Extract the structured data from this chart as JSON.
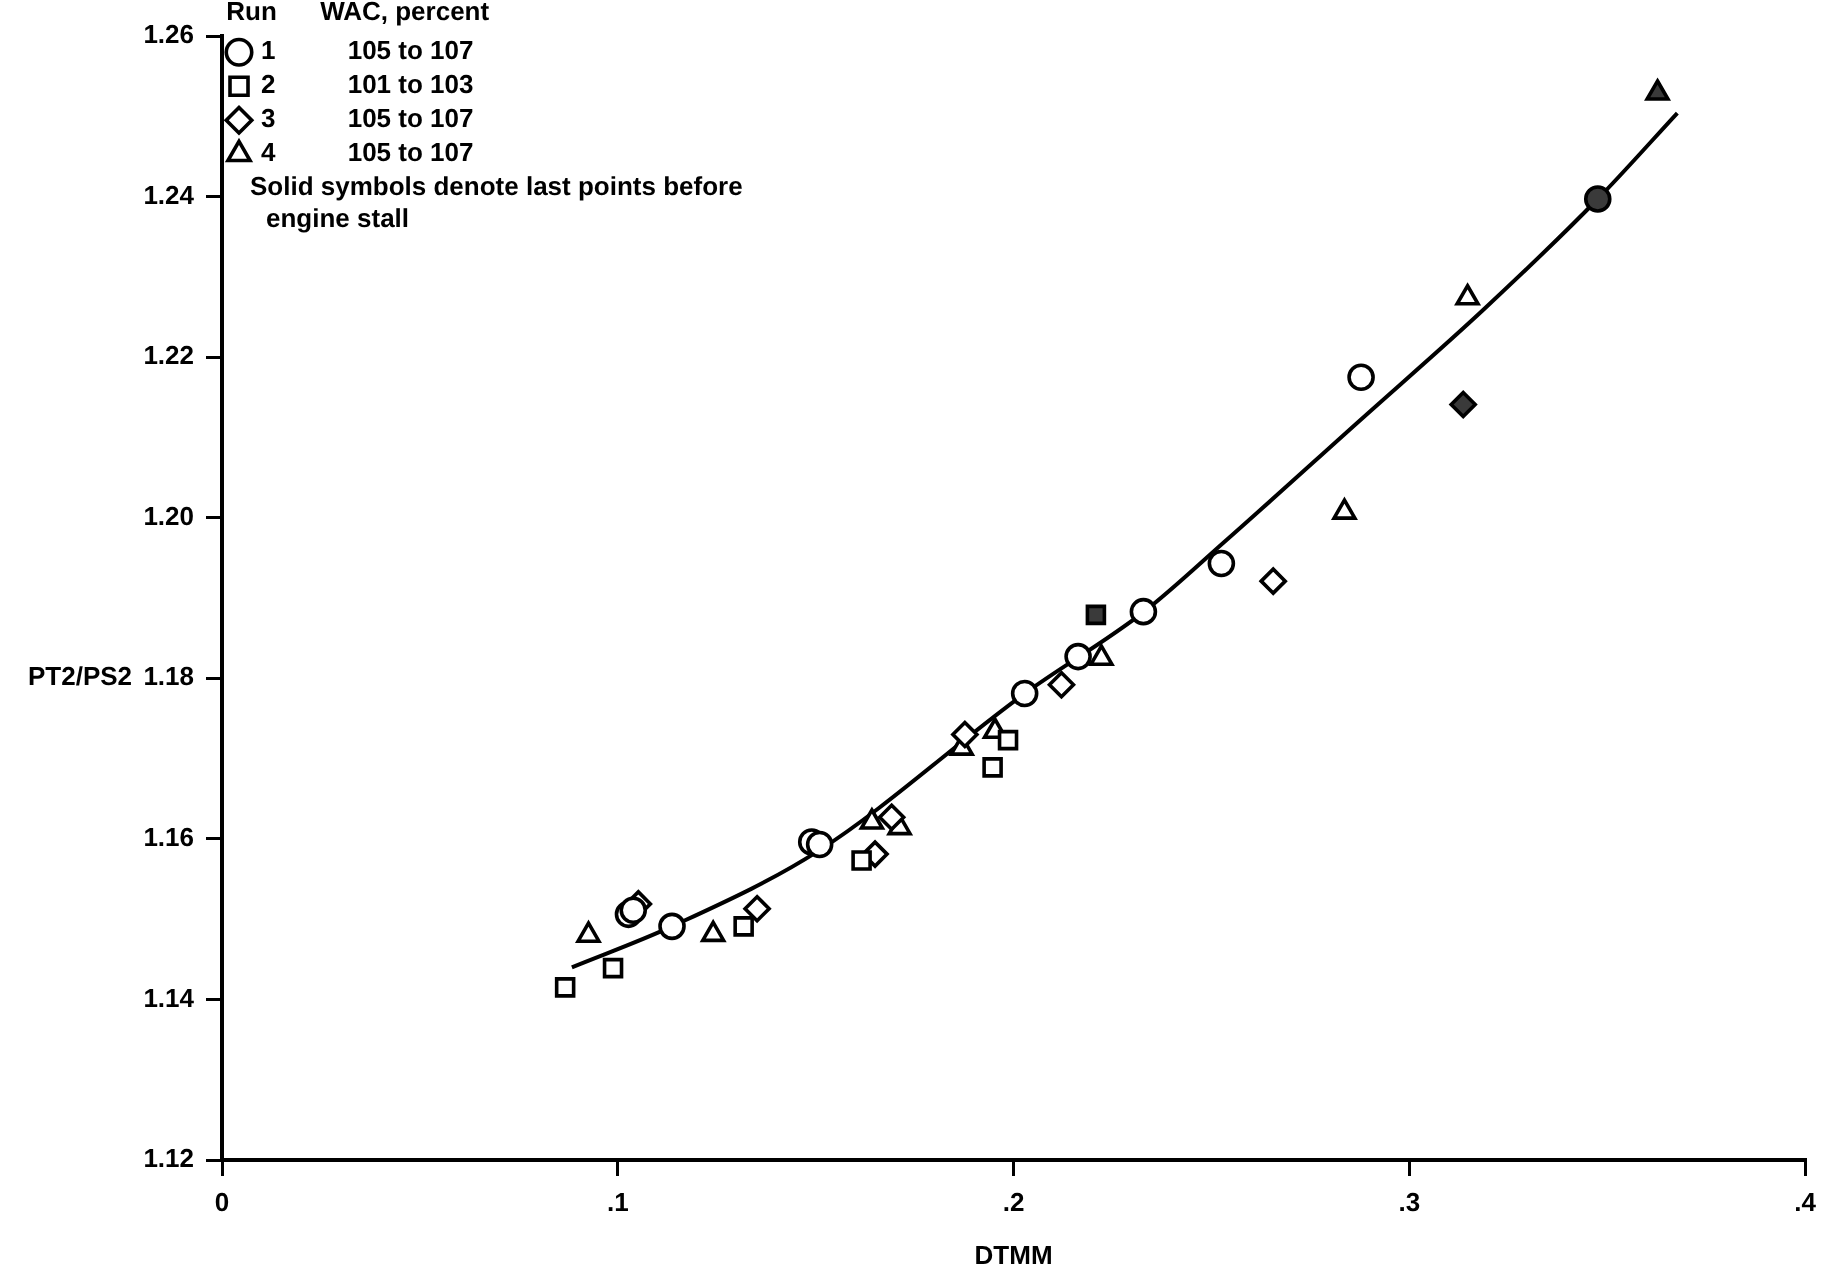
{
  "chart_data": {
    "type": "scatter",
    "xlabel": "DTMM",
    "ylabel": "PT2/PS2",
    "legend_title": "Run WAC, percent",
    "legend": "top left",
    "grid": false,
    "xlim": [
      0,
      0.4
    ],
    "xticks": [
      0,
      {
        "value": 0.1,
        "label": ".1"
      },
      {
        "value": 0.2,
        "label": ".2"
      },
      {
        "value": 0.3,
        "label": ".3"
      },
      {
        "value": 0.4,
        "label": ".4"
      }
    ],
    "ylim": [
      1.12,
      1.26
    ],
    "yticks": [
      1.12,
      1.14,
      1.16,
      1.18,
      {
        "value": 1.2,
        "label": "1.20"
      },
      1.22,
      1.24,
      1.26
    ],
    "annotations": [
      "Solid symbols denote last points before engine stall"
    ],
    "series": [
      {
        "name": "1 105 to 107",
        "marker": "circle",
        "color": "#000000",
        "x": [
          0.1027,
          0.1039,
          0.1137,
          0.149,
          0.151,
          0.2028,
          0.2163,
          0.2328,
          0.2525,
          0.2878,
          0.3476
        ],
        "values": [
          1.1506,
          1.1511,
          1.1491,
          1.1596,
          1.1593,
          1.1781,
          1.1827,
          1.1883,
          1.1943,
          1.2175,
          1.2397
        ],
        "colors": [
          "#ffffff",
          "#ffffff",
          "#ffffff",
          "#ffffff",
          "#ffffff",
          "#ffffff",
          "#ffffff",
          "#ffffff",
          "#ffffff",
          "#ffffff",
          "#3a3a3a"
        ]
      },
      {
        "name": "2 101 to 103",
        "marker": "square",
        "color": "#000000",
        "x": [
          0.0867,
          0.0988,
          0.1318,
          0.1616,
          0.1947,
          0.1986,
          0.2208
        ],
        "values": [
          1.1415,
          1.1439,
          1.1491,
          1.1573,
          1.1689,
          1.1723,
          1.1879
        ],
        "colors": [
          "#ffffff",
          "#ffffff",
          "#ffffff",
          "#ffffff",
          "#ffffff",
          "#ffffff",
          "#3a3a3a"
        ]
      },
      {
        "name": "3 105 to 107",
        "marker": "diamond",
        "color": "#000000",
        "x": [
          0.1052,
          0.1352,
          0.165,
          0.1692,
          0.1877,
          0.2121,
          0.2656,
          0.3136
        ],
        "values": [
          1.1519,
          1.1513,
          1.1581,
          1.1627,
          1.173,
          1.1792,
          1.1921,
          1.2141
        ],
        "colors": [
          "#ffffff",
          "#ffffff",
          "#ffffff",
          "#ffffff",
          "#ffffff",
          "#ffffff",
          "#ffffff",
          "#3a3a3a"
        ]
      },
      {
        "name": "4 105 to 107",
        "marker": "triangle",
        "color": "#000000",
        "x": [
          0.0926,
          0.1241,
          0.1642,
          0.1712,
          0.1869,
          0.1953,
          0.2222,
          0.2836,
          0.3147,
          0.3627
        ],
        "values": [
          1.148,
          1.1481,
          1.1621,
          1.1614,
          1.1713,
          1.1734,
          1.1825,
          1.2007,
          1.2274,
          1.2529
        ],
        "colors": [
          "#ffffff",
          "#ffffff",
          "#ffffff",
          "#ffffff",
          "#ffffff",
          "#ffffff",
          "#ffffff",
          "#ffffff",
          "#ffffff",
          "#3a3a3a"
        ]
      },
      {
        "type": "line",
        "marker": "none",
        "color": "#000000",
        "x": [
          0.0884,
          0.1137,
          0.1507,
          0.2028,
          0.233,
          0.2533,
          0.287,
          0.3189,
          0.3476,
          0.3677
        ],
        "values": [
          1.144,
          1.1491,
          1.1585,
          1.1781,
          1.1883,
          1.197,
          1.2119,
          1.226,
          1.2397,
          1.2504
        ]
      }
    ]
  }
}
